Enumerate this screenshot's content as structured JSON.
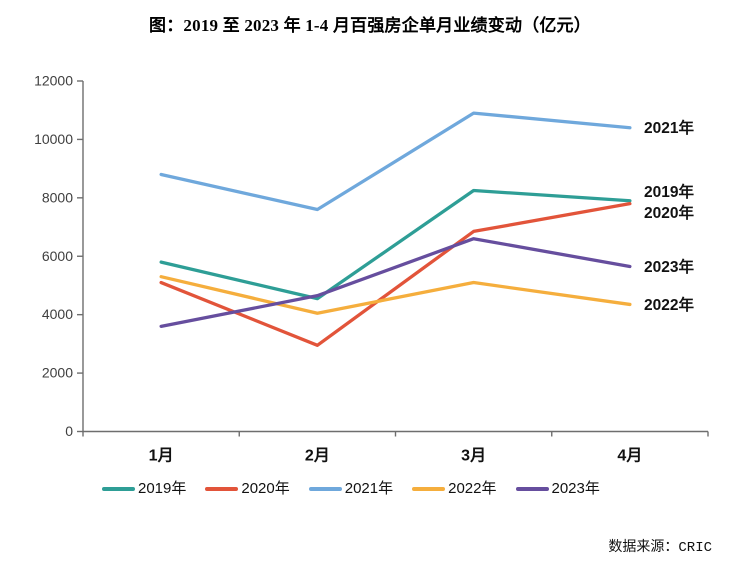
{
  "page": {
    "source_note": "数据来源：CRIC"
  },
  "chart_data": {
    "type": "line",
    "title": "图：2019 至 2023 年 1-4 月百强房企单月业绩变动（亿元）",
    "categories": [
      "1月",
      "2月",
      "3月",
      "4月"
    ],
    "series": [
      {
        "name": "2019年",
        "color": "#2E9E96",
        "values": [
          5800,
          4550,
          8250,
          7900
        ]
      },
      {
        "name": "2020年",
        "color": "#E2543A",
        "values": [
          5100,
          2950,
          6850,
          7800
        ]
      },
      {
        "name": "2021年",
        "color": "#6FA8DC",
        "values": [
          8800,
          7600,
          10900,
          10400
        ]
      },
      {
        "name": "2022年",
        "color": "#F5AE3D",
        "values": [
          5300,
          4050,
          5100,
          4350
        ]
      },
      {
        "name": "2023年",
        "color": "#664E9E",
        "values": [
          3600,
          4650,
          6600,
          5650
        ]
      }
    ],
    "xlabel": "",
    "ylabel": "",
    "ylim": [
      0,
      12000
    ],
    "yticks": [
      0,
      2000,
      4000,
      6000,
      8000,
      10000,
      12000
    ],
    "grid": false,
    "legend_position": "bottom",
    "line_end_labels": true,
    "axis_color": "#6E6E6E",
    "tick_label_color": "#3F3F3F",
    "label_color": "#111111"
  }
}
